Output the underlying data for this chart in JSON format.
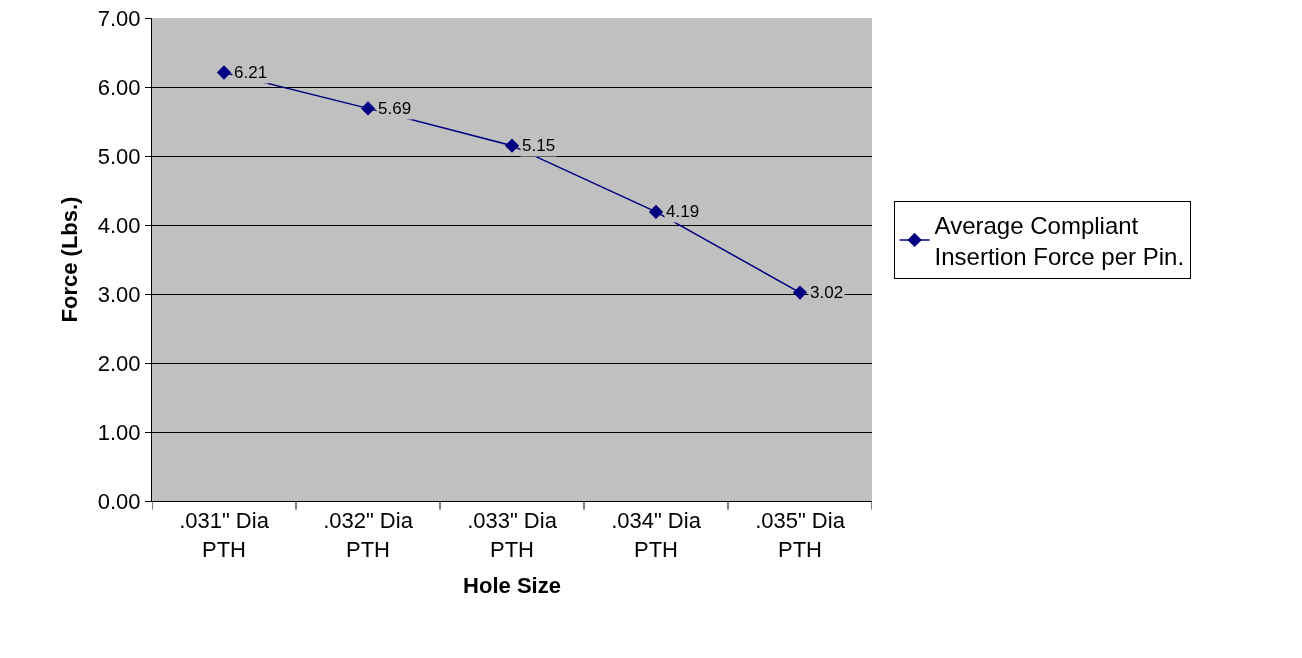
{
  "chart_data": {
    "type": "line",
    "xlabel": "Hole Size",
    "ylabel": "Force (Lbs.)",
    "categories": [
      ".031\" Dia PTH",
      ".032\" Dia PTH",
      ".033\" Dia PTH",
      ".034\" Dia PTH",
      ".035\" Dia PTH"
    ],
    "series": [
      {
        "name": "Average Compliant Insertion Force per Pin.",
        "color": "#000080",
        "values": [
          6.21,
          5.69,
          5.15,
          4.19,
          3.02
        ]
      }
    ],
    "ylim": [
      0,
      7
    ],
    "yticks": [
      {
        "value": 0,
        "label": "0.00"
      },
      {
        "value": 1,
        "label": "1.00"
      },
      {
        "value": 2,
        "label": "2.00"
      },
      {
        "value": 3,
        "label": "3.00"
      },
      {
        "value": 4,
        "label": "4.00"
      },
      {
        "value": 5,
        "label": "5.00"
      },
      {
        "value": 6,
        "label": "6.00"
      },
      {
        "value": 7,
        "label": "7.00"
      }
    ],
    "grid": "y",
    "legend": "right",
    "marker": "diamond",
    "line_style": "solid",
    "data_labels": true
  }
}
